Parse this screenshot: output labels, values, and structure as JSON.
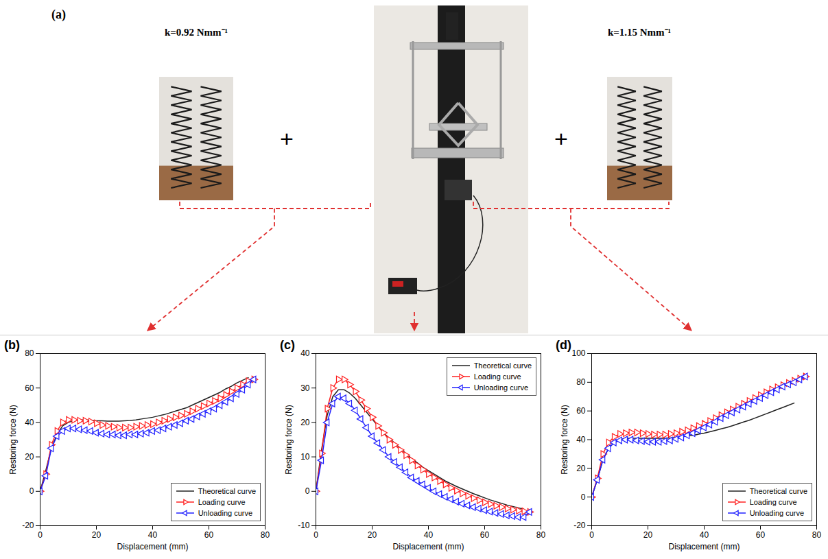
{
  "panel_a": {
    "label": "(a)",
    "left_spring": "k=0.92 Nmm⁻¹",
    "right_spring": "k=1.15 Nmm⁻¹",
    "operator": "+"
  },
  "chart_data": [
    {
      "type": "line",
      "title": "(b)",
      "xlabel": "Displacement (mm)",
      "ylabel": "Restoring force (N)",
      "x": [
        0,
        2,
        4,
        6,
        8,
        10,
        12,
        14,
        16,
        18,
        20,
        22,
        24,
        26,
        28,
        30,
        32,
        34,
        36,
        38,
        40,
        42,
        44,
        46,
        48,
        50,
        52,
        54,
        56,
        58,
        60,
        62,
        64,
        66,
        68,
        70,
        72,
        74,
        76
      ],
      "xlim": [
        0,
        80
      ],
      "xticks": [
        0,
        20,
        40,
        60,
        80
      ],
      "ylim": [
        -20,
        80
      ],
      "yticks": [
        -20,
        0,
        20,
        40,
        60,
        80
      ],
      "grid": false,
      "legend": "lower right",
      "series": [
        {
          "name": "Theoretical curve",
          "color": "#222222",
          "line_style": "solid",
          "values": [
            0,
            12,
            25,
            33,
            38,
            40,
            41,
            41.5,
            41.5,
            41.3,
            41,
            41,
            40.8,
            40.8,
            40.8,
            41,
            41.2,
            41.5,
            42,
            42.5,
            43,
            43.8,
            44.5,
            45.5,
            46.5,
            47.5,
            48.5,
            50,
            51.5,
            53,
            54.5,
            56,
            57.5,
            59.5,
            61,
            63,
            64.5,
            66,
            null
          ]
        },
        {
          "name": "Loading curve",
          "color": "#ff2020",
          "line_style": "solid",
          "marker": "triangle-right",
          "values": [
            0,
            10,
            27,
            35,
            40,
            41.5,
            41.5,
            41,
            41,
            40.5,
            39.5,
            38.5,
            38,
            37.5,
            37,
            37,
            37,
            37.5,
            38,
            38.5,
            39,
            40,
            41,
            42,
            43,
            44,
            45,
            46.5,
            48,
            49.5,
            51,
            52.5,
            54,
            56,
            58,
            60,
            62,
            64,
            65
          ]
        },
        {
          "name": "Unloading curve",
          "color": "#2020ff",
          "line_style": "solid",
          "marker": "triangle-left",
          "values": [
            0,
            9,
            25,
            32,
            35,
            36.5,
            36.5,
            36,
            35.5,
            35,
            34,
            33.5,
            33,
            33,
            32.5,
            32.5,
            33,
            33,
            33.5,
            34,
            35,
            35.5,
            36.5,
            37.5,
            38.5,
            39.5,
            41,
            42,
            43.5,
            45,
            46.5,
            48,
            50,
            52,
            54,
            56.5,
            59,
            62,
            65
          ]
        }
      ]
    },
    {
      "type": "line",
      "title": "(c)",
      "xlabel": "Displacement (mm)",
      "ylabel": "Restoring force (N)",
      "x": [
        0,
        2,
        4,
        6,
        8,
        10,
        12,
        14,
        16,
        18,
        20,
        22,
        24,
        26,
        28,
        30,
        32,
        34,
        36,
        38,
        40,
        42,
        44,
        46,
        48,
        50,
        52,
        54,
        56,
        58,
        60,
        62,
        64,
        66,
        68,
        70,
        72,
        74,
        76
      ],
      "xlim": [
        0,
        80
      ],
      "xticks": [
        0,
        20,
        40,
        60,
        80
      ],
      "ylim": [
        -10,
        40
      ],
      "yticks": [
        -10,
        0,
        10,
        20,
        30,
        40
      ],
      "grid": false,
      "legend": "upper right",
      "series": [
        {
          "name": "Theoretical curve",
          "color": "#222222",
          "line_style": "solid",
          "values": [
            0,
            12,
            22,
            27.5,
            29.5,
            29.5,
            28.5,
            27,
            25,
            23,
            21,
            19,
            17,
            15.5,
            14,
            12.5,
            11,
            9.5,
            8.3,
            7,
            6,
            5,
            4,
            3,
            2.2,
            1.4,
            0.7,
            0,
            -0.7,
            -1.3,
            -1.9,
            -2.5,
            -3,
            -3.5,
            -4,
            -4.4,
            -4.8,
            -5.2,
            null
          ]
        },
        {
          "name": "Loading curve",
          "color": "#ff2020",
          "line_style": "solid",
          "marker": "triangle-right",
          "values": [
            0,
            11,
            24,
            30,
            32.5,
            32.5,
            31,
            29,
            26.5,
            24,
            21.5,
            19,
            17,
            15,
            13.5,
            12,
            10.5,
            9,
            7.5,
            6.3,
            5,
            4,
            3,
            2,
            1,
            0.2,
            -0.6,
            -1.3,
            -2,
            -2.6,
            -3.2,
            -3.7,
            -4.2,
            -4.6,
            -5,
            -5.3,
            -5.6,
            -5.8,
            -6
          ]
        },
        {
          "name": "Unloading curve",
          "color": "#2020ff",
          "line_style": "solid",
          "marker": "triangle-left",
          "values": [
            0,
            9,
            20,
            25.5,
            27.5,
            27,
            25.5,
            23.5,
            21,
            18.5,
            16,
            14,
            12,
            10,
            8.5,
            7,
            5.5,
            4,
            3,
            2,
            1,
            0,
            -0.8,
            -1.6,
            -2.3,
            -3,
            -3.6,
            -4.1,
            -4.6,
            -5,
            -5.5,
            -5.9,
            -6.3,
            -6.6,
            -7,
            -7.2,
            -7.5,
            -7.5,
            -6
          ]
        }
      ]
    },
    {
      "type": "line",
      "title": "(d)",
      "xlabel": "Displacement (mm)",
      "ylabel": "Restoring force (N)",
      "x": [
        0,
        2,
        4,
        6,
        8,
        10,
        12,
        14,
        16,
        18,
        20,
        22,
        24,
        26,
        28,
        30,
        32,
        34,
        36,
        38,
        40,
        42,
        44,
        46,
        48,
        50,
        52,
        54,
        56,
        58,
        60,
        62,
        64,
        66,
        68,
        70,
        72,
        74,
        76
      ],
      "xlim": [
        0,
        80
      ],
      "xticks": [
        0,
        20,
        40,
        60,
        80
      ],
      "ylim": [
        -20,
        100
      ],
      "yticks": [
        -20,
        0,
        20,
        40,
        60,
        80,
        100
      ],
      "grid": false,
      "legend": "lower right",
      "series": [
        {
          "name": "Theoretical curve",
          "color": "#222222",
          "line_style": "solid",
          "values": [
            0,
            12,
            26,
            34,
            38,
            40,
            41,
            41,
            41,
            41,
            41,
            41,
            41,
            41,
            41.2,
            41.5,
            42,
            42.5,
            43,
            43.8,
            44.5,
            45.5,
            46.5,
            47.5,
            48.5,
            49.7,
            51,
            52.3,
            53.5,
            55,
            56.5,
            58,
            59.5,
            61,
            62.5,
            64,
            65.5,
            null,
            null
          ]
        },
        {
          "name": "Loading curve",
          "color": "#ff2020",
          "line_style": "solid",
          "marker": "triangle-right",
          "values": [
            0,
            13,
            30,
            38,
            42,
            44,
            44.5,
            45,
            45,
            44.5,
            44,
            43.5,
            43.5,
            43.5,
            44,
            44.5,
            45.5,
            46.5,
            48,
            49.5,
            51,
            53,
            55,
            57,
            59,
            61,
            63,
            65,
            67,
            69,
            71,
            73,
            75,
            76.5,
            78,
            79.5,
            81,
            82.5,
            84
          ]
        },
        {
          "name": "Unloading curve",
          "color": "#2020ff",
          "line_style": "solid",
          "marker": "triangle-left",
          "values": [
            0,
            12,
            26,
            34,
            38,
            39.5,
            40,
            40,
            39.5,
            39,
            38.5,
            38.5,
            38.5,
            39,
            39.5,
            40.5,
            41.5,
            43,
            44.5,
            46.5,
            48.5,
            50.5,
            52.5,
            55,
            57,
            59,
            61,
            63,
            65,
            67,
            69,
            71,
            73,
            75,
            77,
            78.5,
            80,
            82,
            84
          ]
        }
      ]
    }
  ]
}
